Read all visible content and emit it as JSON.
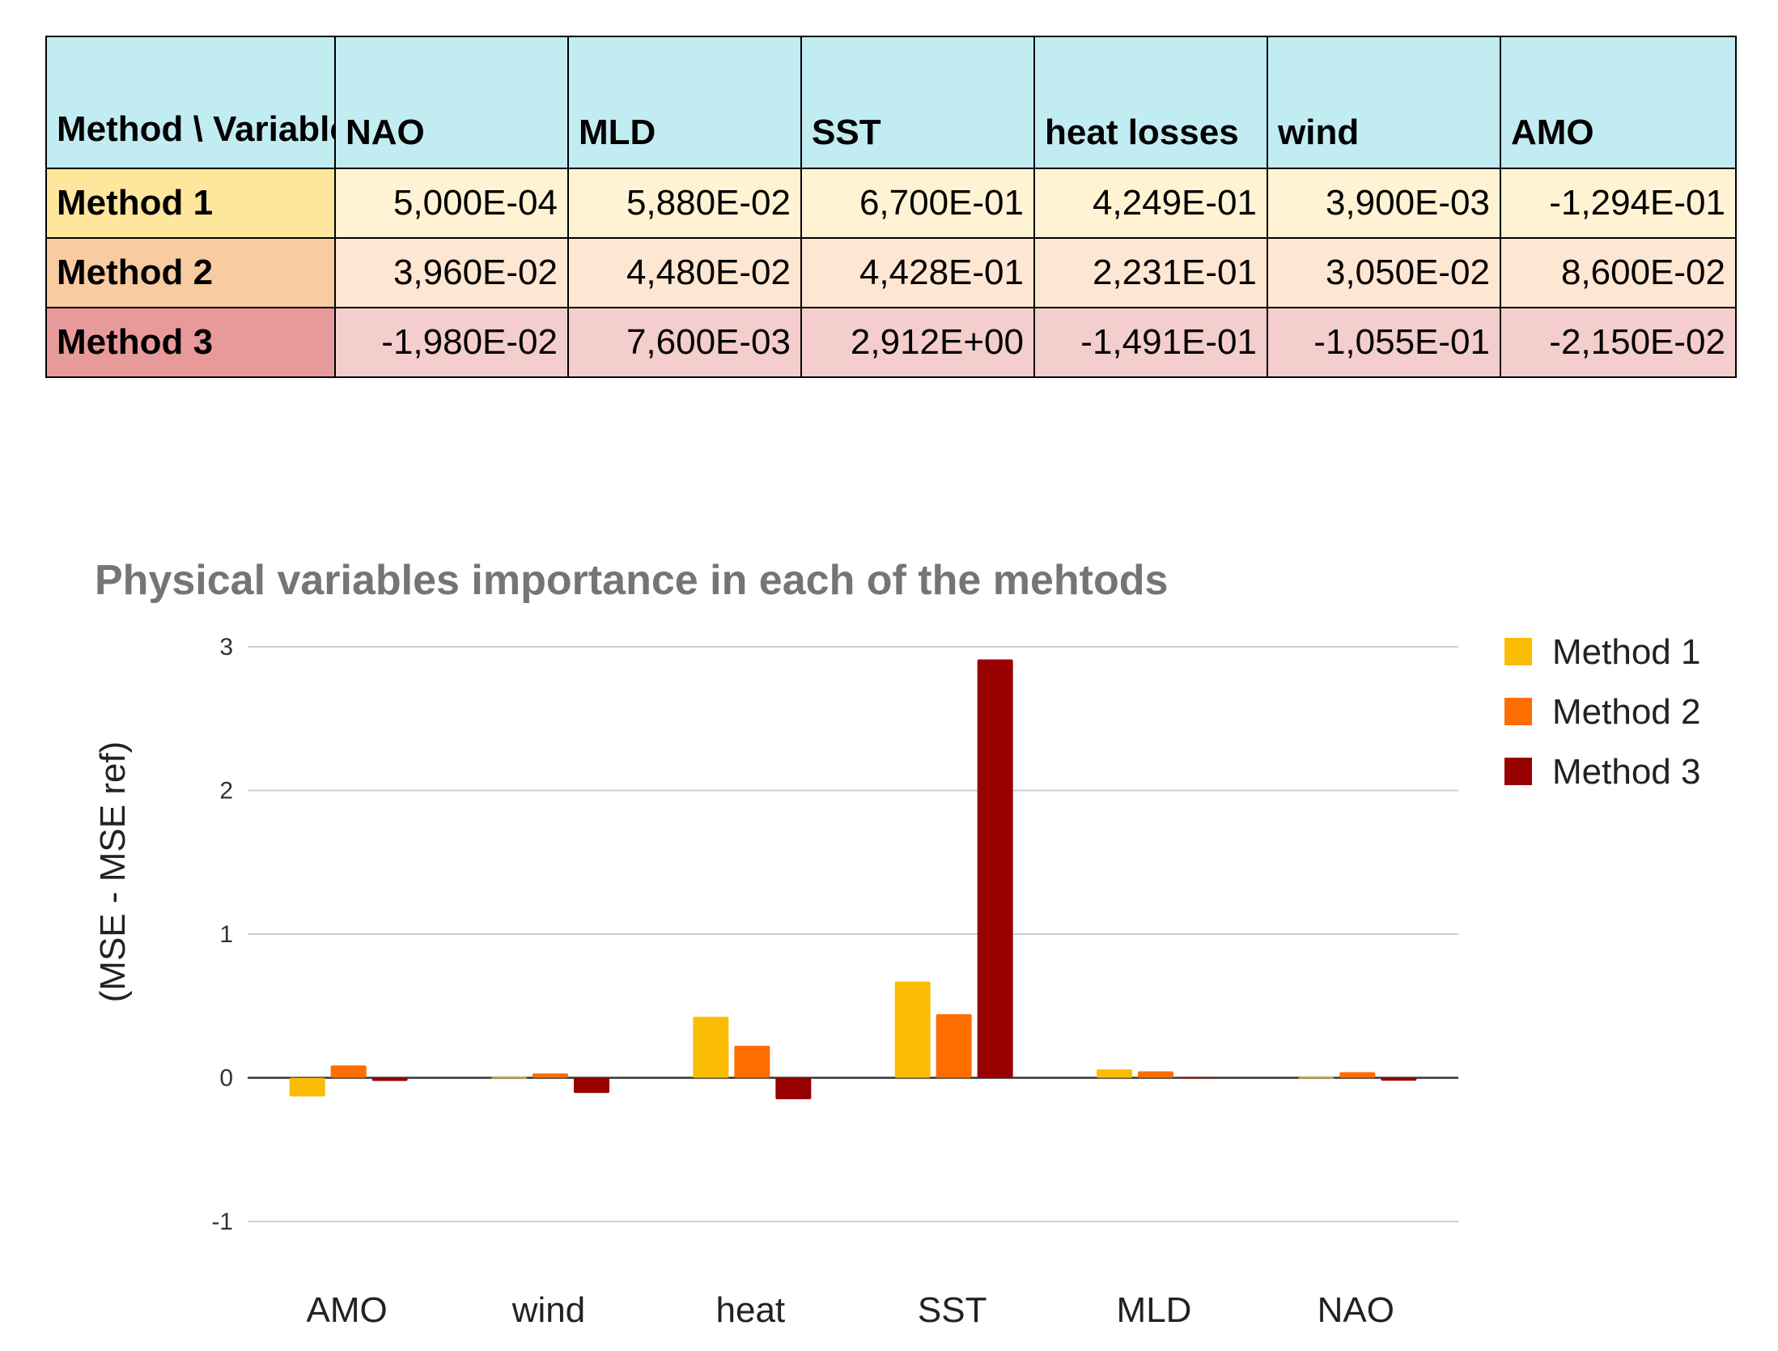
{
  "table": {
    "header": [
      "Method \\ Variable",
      "NAO",
      "MLD",
      "SST",
      "heat losses",
      "wind",
      "AMO"
    ],
    "rows": [
      {
        "label": "Method 1",
        "values": [
          "5,000E-04",
          "5,880E-02",
          "6,700E-01",
          "4,249E-01",
          "3,900E-03",
          "-1,294E-01"
        ]
      },
      {
        "label": "Method 2",
        "values": [
          "3,960E-02",
          "4,480E-02",
          "4,428E-01",
          "2,231E-01",
          "3,050E-02",
          "8,600E-02"
        ]
      },
      {
        "label": "Method 3",
        "values": [
          "-1,980E-02",
          "7,600E-03",
          "2,912E+00",
          "-1,491E-01",
          "-1,055E-01",
          "-2,150E-02"
        ]
      }
    ]
  },
  "chart_data": {
    "type": "bar",
    "title": "Physical variables importance in each of the mehtods",
    "xlabel": "",
    "ylabel": "(MSE - MSE ref)",
    "categories": [
      "AMO",
      "wind",
      "heat",
      "SST",
      "MLD",
      "NAO"
    ],
    "series": [
      {
        "name": "Method 1",
        "color": "#fbbc04",
        "values": [
          -0.1294,
          0.0039,
          0.4249,
          0.67,
          0.0588,
          0.0005
        ]
      },
      {
        "name": "Method 2",
        "color": "#ff6d01",
        "values": [
          0.086,
          0.0305,
          0.2231,
          0.4428,
          0.0448,
          0.0396
        ]
      },
      {
        "name": "Method 3",
        "color": "#990000",
        "values": [
          -0.0215,
          -0.1055,
          -0.1491,
          2.912,
          0.0076,
          -0.0198
        ]
      }
    ],
    "ylim": [
      -1,
      3
    ],
    "yticks": [
      -1,
      0,
      1,
      2,
      3
    ],
    "grid": true,
    "legend_position": "right"
  }
}
